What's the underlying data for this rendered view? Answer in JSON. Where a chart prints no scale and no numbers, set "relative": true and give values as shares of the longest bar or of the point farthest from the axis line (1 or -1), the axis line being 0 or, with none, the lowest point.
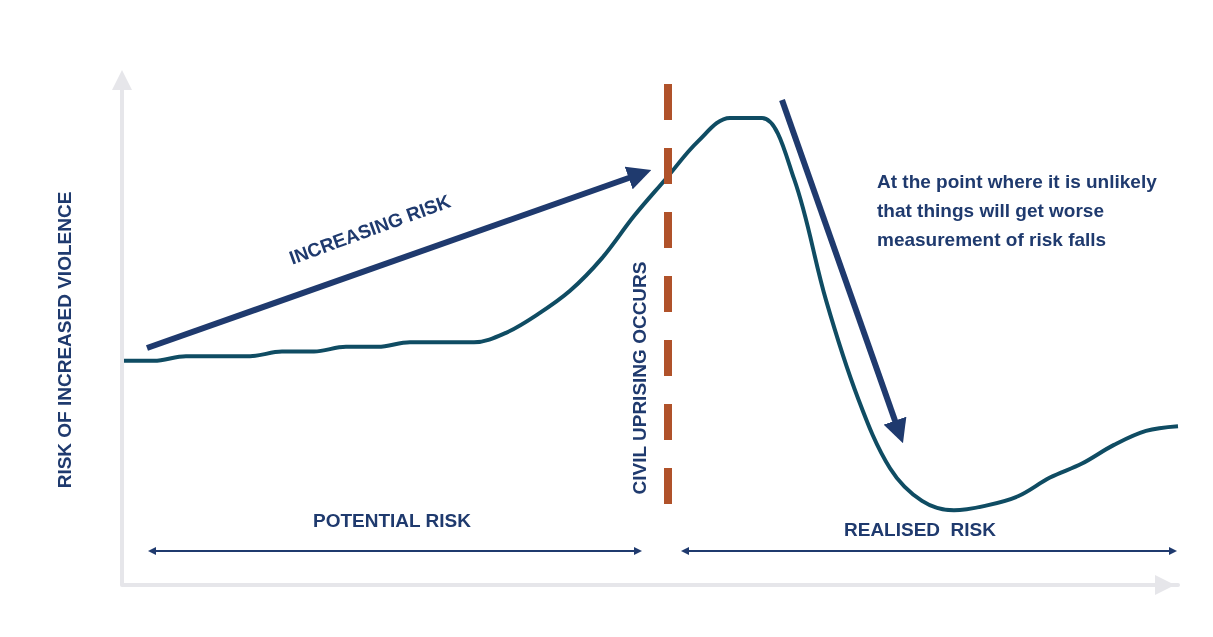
{
  "chart_data": {
    "type": "line",
    "relative": true,
    "ylabel": "RISK OF INCREASED VIOLENCE",
    "categories": [
      null,
      null,
      null,
      null,
      null,
      null,
      null,
      null,
      null,
      null,
      null,
      null,
      null,
      null,
      null,
      null,
      null,
      null,
      null,
      null,
      null,
      null,
      null,
      null,
      null,
      null,
      null,
      null,
      null,
      null,
      null,
      null,
      null,
      null
    ],
    "series": [
      {
        "color": "#0f4c63",
        "values": [
          0.48,
          0.48,
          0.49,
          0.49,
          0.49,
          0.5,
          0.5,
          0.51,
          0.51,
          0.52,
          0.52,
          0.52,
          0.54,
          0.58,
          0.63,
          0.7,
          0.79,
          0.87,
          0.95,
          1,
          1,
          0.87,
          0.61,
          0.4,
          0.25,
          0.18,
          0.16,
          0.17,
          0.19,
          0.23,
          0.26,
          0.3,
          0.33,
          0.34
        ]
      }
    ],
    "annotations": [
      "INCREASING RISK",
      "POTENTIAL RISK",
      "REALISED  RISK",
      "At the point where it is unlikely that things will get worse measurement of risk falls",
      "CIVIL UPRISING OCCURS"
    ],
    "grid": false
  }
}
